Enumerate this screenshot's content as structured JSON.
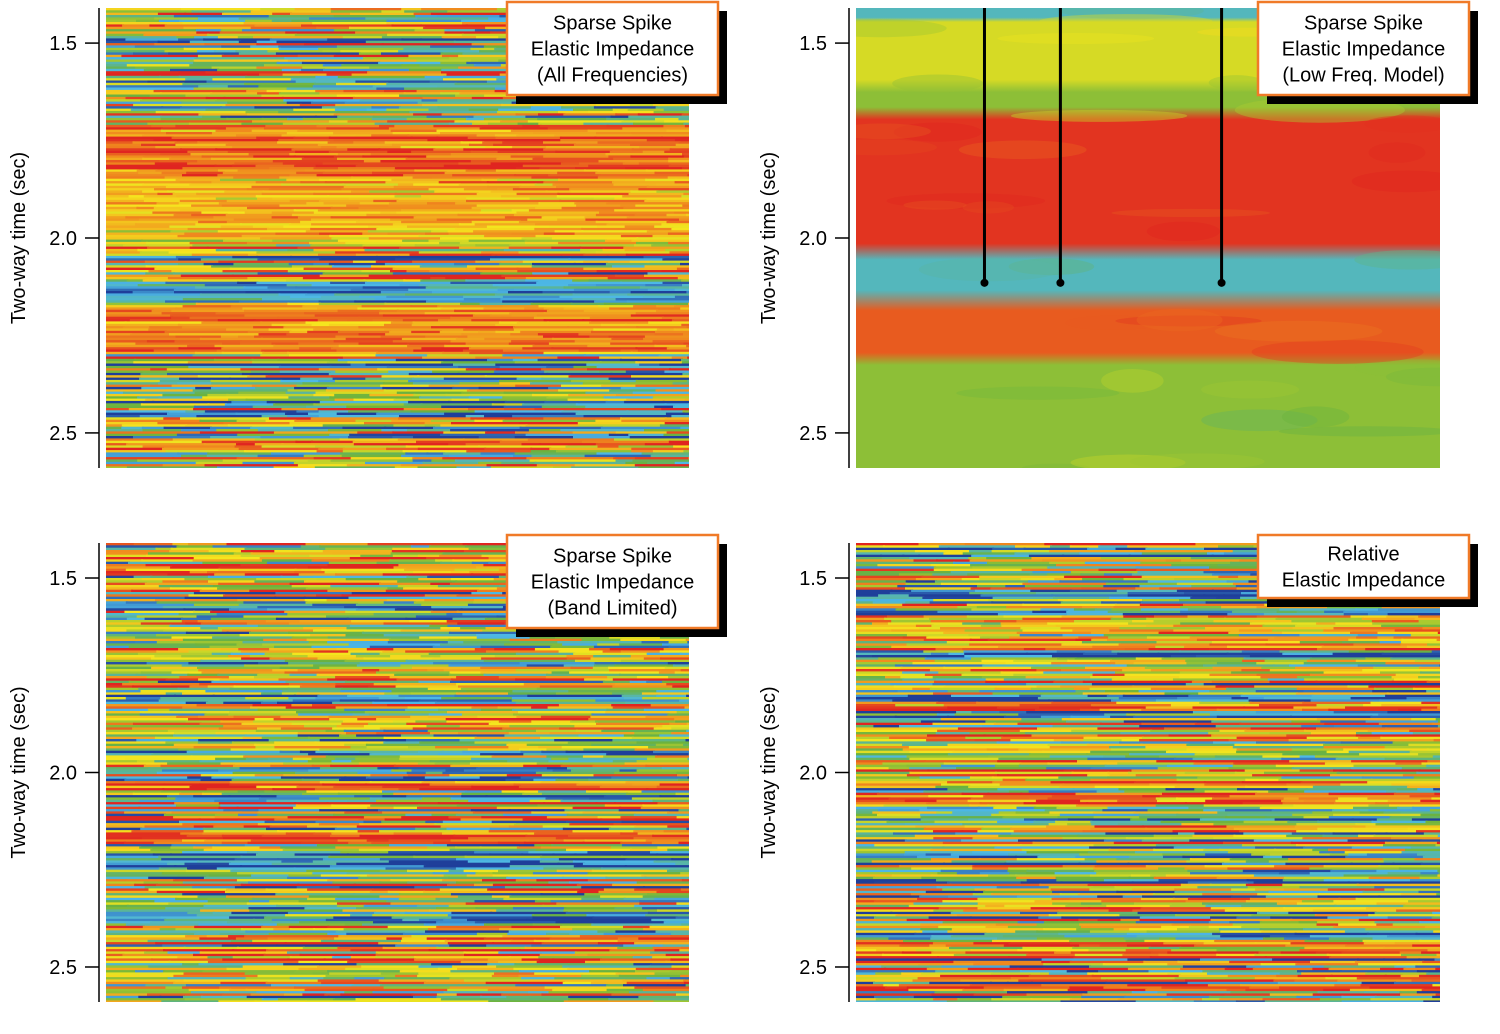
{
  "figure": {
    "palette": {
      "dark_blue": "#1f3f9a",
      "cyan": "#4db8e6",
      "green": "#6ab23f",
      "yellow": "#f5e61e",
      "orange": "#f08c1e",
      "red": "#e02520",
      "label_border": "#f07a28",
      "label_shadow": "#000000"
    }
  },
  "chart_data": [
    {
      "type": "heatmap",
      "title": "",
      "xlabel": "",
      "ylabel": "Two-way time (sec)",
      "ylim": [
        1.41,
        2.59
      ],
      "yticks": [
        1.5,
        2.0,
        2.5
      ],
      "ytick_labels": [
        "1.5",
        "2.0",
        "2.5"
      ],
      "label_box": [
        "Sparse Spike",
        "Elastic Impedance",
        "(All Frequencies)"
      ],
      "style": "fine",
      "color_scale": [
        "dark_blue",
        "cyan",
        "green",
        "yellow",
        "orange",
        "red"
      ],
      "dominant_bands": [
        {
          "from": 1.71,
          "to": 1.84,
          "color": "red"
        },
        {
          "from": 1.84,
          "to": 2.0,
          "color": "red/yellow"
        },
        {
          "from": 2.11,
          "to": 2.16,
          "color": "dark_blue"
        },
        {
          "from": 2.17,
          "to": 2.29,
          "color": "red/orange"
        }
      ],
      "well_markers": []
    },
    {
      "type": "heatmap",
      "title": "",
      "xlabel": "",
      "ylabel": "Two-way time (sec)",
      "ylim": [
        1.41,
        2.59
      ],
      "yticks": [
        1.5,
        2.0,
        2.5
      ],
      "ytick_labels": [
        "1.5",
        "2.0",
        "2.5"
      ],
      "label_box": [
        "Sparse Spike",
        "Elastic Impedance",
        "(Low Freq. Model)"
      ],
      "style": "smooth",
      "color_scale": [
        "dark_blue",
        "cyan",
        "green",
        "yellow",
        "orange",
        "red"
      ],
      "dominant_bands": [
        {
          "from": 1.41,
          "to": 1.44,
          "color": "cyan"
        },
        {
          "from": 1.44,
          "to": 1.6,
          "color": "green/yellow"
        },
        {
          "from": 1.62,
          "to": 1.67,
          "color": "green"
        },
        {
          "from": 1.69,
          "to": 2.02,
          "color": "red"
        },
        {
          "from": 2.05,
          "to": 2.14,
          "color": "cyan"
        },
        {
          "from": 2.18,
          "to": 2.3,
          "color": "red/orange"
        },
        {
          "from": 2.32,
          "to": 2.59,
          "color": "green"
        }
      ],
      "well_markers": [
        {
          "x_fraction": 0.22,
          "top": 1.41,
          "bottom": 2.115
        },
        {
          "x_fraction": 0.35,
          "top": 1.41,
          "bottom": 2.115
        },
        {
          "x_fraction": 0.626,
          "top": 1.41,
          "bottom": 2.115
        }
      ]
    },
    {
      "type": "heatmap",
      "title": "",
      "xlabel": "",
      "ylabel": "Two-way time (sec)",
      "ylim": [
        1.41,
        2.59
      ],
      "yticks": [
        1.5,
        2.0,
        2.5
      ],
      "ytick_labels": [
        "1.5",
        "2.0",
        "2.5"
      ],
      "label_box": [
        "Sparse Spike",
        "Elastic Impedance",
        "(Band Limited)"
      ],
      "style": "fine",
      "color_scale": [
        "dark_blue",
        "cyan",
        "green",
        "yellow",
        "orange",
        "red"
      ],
      "dominant_bands": [
        {
          "from": 2.15,
          "to": 2.18,
          "color": "red"
        }
      ],
      "well_markers": []
    },
    {
      "type": "heatmap",
      "title": "",
      "xlabel": "",
      "ylabel": "Two-way time (sec)",
      "ylim": [
        1.41,
        2.59
      ],
      "yticks": [
        1.5,
        2.0,
        2.5
      ],
      "ytick_labels": [
        "1.5",
        "2.0",
        "2.5"
      ],
      "label_box": [
        "Relative",
        "Elastic Impedance"
      ],
      "style": "fine",
      "color_scale": [
        "dark_blue",
        "cyan",
        "green",
        "yellow",
        "orange",
        "red"
      ],
      "dominant_bands": [],
      "well_markers": []
    }
  ]
}
